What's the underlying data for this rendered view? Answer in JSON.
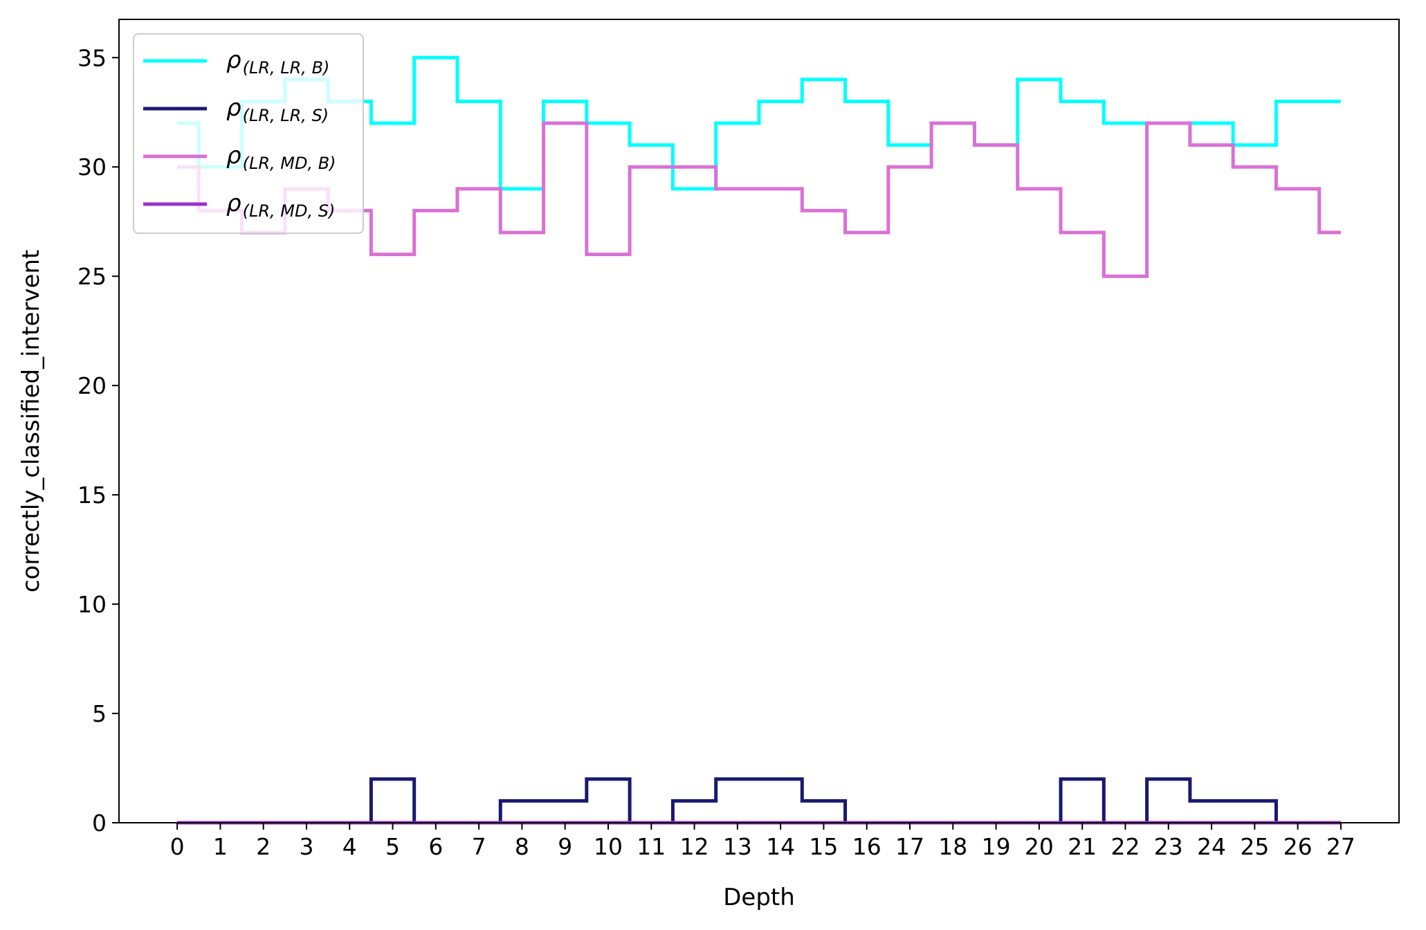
{
  "chart_data": {
    "type": "line",
    "drawstyle": "steps-mid",
    "xlabel": "Depth",
    "ylabel": "correctly_classified_intervent",
    "x": [
      0,
      1,
      2,
      3,
      4,
      5,
      6,
      7,
      8,
      9,
      10,
      11,
      12,
      13,
      14,
      15,
      16,
      17,
      18,
      19,
      20,
      21,
      22,
      23,
      24,
      25,
      26,
      27
    ],
    "xlim": [
      -1.35,
      28.35
    ],
    "ylim": [
      0,
      36.75
    ],
    "yticks": [
      0,
      5,
      10,
      15,
      20,
      25,
      30,
      35
    ],
    "legend_position": "upper left",
    "grid": false,
    "series": [
      {
        "name": "ρ(LR, LR, B)",
        "symbol": "ρ",
        "subscript": "(LR, LR, B)",
        "color": "#00ffff",
        "values": [
          32,
          30,
          33,
          34,
          33,
          32,
          35,
          33,
          29,
          33,
          32,
          31,
          29,
          32,
          33,
          34,
          33,
          31,
          32,
          31,
          34,
          33,
          32,
          32,
          32,
          31,
          33,
          33
        ]
      },
      {
        "name": "ρ(LR, LR, S)",
        "symbol": "ρ",
        "subscript": "(LR, LR, S)",
        "color": "#191970",
        "values": [
          0,
          0,
          0,
          0,
          0,
          2,
          0,
          0,
          1,
          1,
          2,
          0,
          1,
          2,
          2,
          1,
          0,
          0,
          0,
          0,
          0,
          2,
          0,
          2,
          1,
          1,
          0,
          0
        ]
      },
      {
        "name": "ρ(LR, MD, B)",
        "symbol": "ρ",
        "subscript": "(LR, MD, B)",
        "color": "#da70d6",
        "values": [
          30,
          28,
          27,
          29,
          28,
          26,
          28,
          29,
          27,
          32,
          26,
          30,
          30,
          29,
          29,
          28,
          27,
          30,
          32,
          31,
          29,
          27,
          25,
          32,
          31,
          30,
          29,
          27
        ]
      },
      {
        "name": "ρ(LR, MD, S)",
        "symbol": "ρ",
        "subscript": "(LR, MD, S)",
        "color": "#9932cc",
        "values": [
          0,
          0,
          0,
          0,
          0,
          0,
          0,
          0,
          0,
          0,
          0,
          0,
          0,
          0,
          0,
          0,
          0,
          0,
          0,
          0,
          0,
          0,
          0,
          0,
          0,
          0,
          0,
          0
        ]
      }
    ]
  }
}
